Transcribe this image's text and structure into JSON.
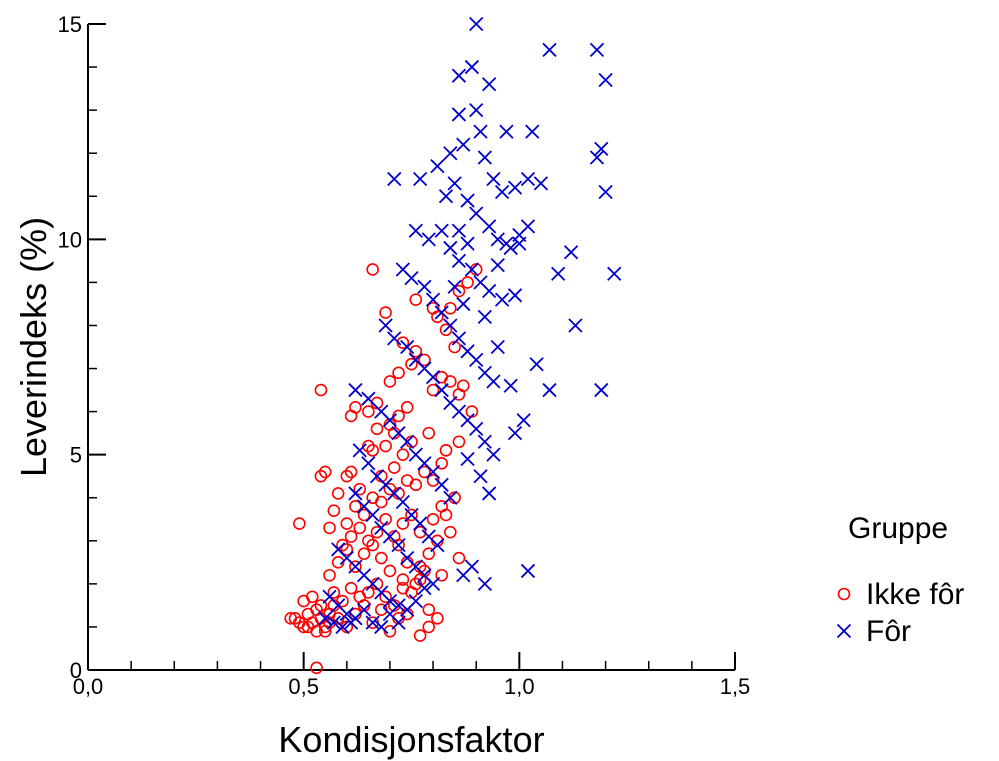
{
  "chart_data": {
    "type": "scatter",
    "title": "",
    "xlabel": "Kondisjonsfaktor",
    "ylabel": "Leverindeks (%)",
    "xlim": [
      0,
      1.5
    ],
    "ylim": [
      0,
      15
    ],
    "xticks": [
      "0,0",
      "0,5",
      "1,0",
      "1,5"
    ],
    "yticks": [
      "0",
      "5",
      "10",
      "15"
    ],
    "grid": false,
    "legend": {
      "title": "Gruppe",
      "placement": "right"
    },
    "series": [
      {
        "name": "Ikke fôr",
        "marker": "circle",
        "color": "#ff0000",
        "points": [
          [
            0.53,
            0.05
          ],
          [
            0.48,
            1.2
          ],
          [
            0.5,
            1.0
          ],
          [
            0.51,
            1.3
          ],
          [
            0.52,
            1.1
          ],
          [
            0.53,
            1.4
          ],
          [
            0.54,
            1.2
          ],
          [
            0.55,
            1.0
          ],
          [
            0.56,
            1.3
          ],
          [
            0.57,
            1.5
          ],
          [
            0.55,
            0.9
          ],
          [
            0.56,
            1.1
          ],
          [
            0.58,
            1.2
          ],
          [
            0.6,
            1.0
          ],
          [
            0.62,
            1.3
          ],
          [
            0.64,
            1.5
          ],
          [
            0.66,
            1.1
          ],
          [
            0.68,
            1.4
          ],
          [
            0.7,
            0.9
          ],
          [
            0.72,
            1.2
          ],
          [
            0.5,
            1.6
          ],
          [
            0.52,
            1.7
          ],
          [
            0.54,
            1.5
          ],
          [
            0.57,
            1.8
          ],
          [
            0.59,
            1.6
          ],
          [
            0.61,
            1.9
          ],
          [
            0.63,
            1.7
          ],
          [
            0.65,
            1.8
          ],
          [
            0.67,
            2.0
          ],
          [
            0.69,
            1.7
          ],
          [
            0.71,
            1.5
          ],
          [
            0.73,
            1.9
          ],
          [
            0.75,
            1.8
          ],
          [
            0.77,
            2.1
          ],
          [
            0.79,
            1.4
          ],
          [
            0.81,
            1.2
          ],
          [
            0.47,
            1.2
          ],
          [
            0.49,
            1.1
          ],
          [
            0.51,
            1.0
          ],
          [
            0.53,
            0.9
          ],
          [
            0.56,
            2.2
          ],
          [
            0.58,
            2.5
          ],
          [
            0.6,
            2.8
          ],
          [
            0.62,
            2.4
          ],
          [
            0.64,
            2.7
          ],
          [
            0.66,
            2.9
          ],
          [
            0.68,
            2.6
          ],
          [
            0.7,
            2.3
          ],
          [
            0.72,
            2.9
          ],
          [
            0.74,
            2.5
          ],
          [
            0.59,
            2.9
          ],
          [
            0.61,
            3.1
          ],
          [
            0.63,
            3.3
          ],
          [
            0.65,
            3.0
          ],
          [
            0.67,
            3.2
          ],
          [
            0.69,
            3.5
          ],
          [
            0.71,
            3.1
          ],
          [
            0.73,
            3.4
          ],
          [
            0.75,
            3.6
          ],
          [
            0.77,
            3.2
          ],
          [
            0.6,
            3.4
          ],
          [
            0.62,
            3.8
          ],
          [
            0.64,
            3.6
          ],
          [
            0.66,
            4.0
          ],
          [
            0.68,
            3.9
          ],
          [
            0.7,
            4.2
          ],
          [
            0.72,
            4.1
          ],
          [
            0.74,
            4.4
          ],
          [
            0.76,
            4.3
          ],
          [
            0.78,
            4.6
          ],
          [
            0.8,
            3.5
          ],
          [
            0.82,
            3.8
          ],
          [
            0.84,
            3.2
          ],
          [
            0.86,
            2.6
          ],
          [
            0.82,
            2.2
          ],
          [
            0.78,
            2.3
          ],
          [
            0.76,
            2.0
          ],
          [
            0.74,
            1.3
          ],
          [
            0.79,
            1.0
          ],
          [
            0.77,
            0.8
          ],
          [
            0.54,
            4.5
          ],
          [
            0.55,
            4.6
          ],
          [
            0.6,
            4.5
          ],
          [
            0.61,
            4.6
          ],
          [
            0.65,
            5.2
          ],
          [
            0.66,
            5.1
          ],
          [
            0.7,
            5.7
          ],
          [
            0.71,
            5.5
          ],
          [
            0.72,
            5.9
          ],
          [
            0.74,
            6.1
          ],
          [
            0.54,
            6.5
          ],
          [
            0.61,
            5.9
          ],
          [
            0.62,
            6.1
          ],
          [
            0.65,
            6.0
          ],
          [
            0.67,
            6.2
          ],
          [
            0.7,
            6.7
          ],
          [
            0.72,
            6.9
          ],
          [
            0.75,
            7.1
          ],
          [
            0.76,
            7.4
          ],
          [
            0.78,
            7.2
          ],
          [
            0.8,
            6.5
          ],
          [
            0.82,
            6.8
          ],
          [
            0.84,
            6.7
          ],
          [
            0.86,
            6.4
          ],
          [
            0.85,
            7.5
          ],
          [
            0.83,
            7.9
          ],
          [
            0.81,
            8.2
          ],
          [
            0.84,
            8.4
          ],
          [
            0.86,
            8.8
          ],
          [
            0.88,
            9.0
          ],
          [
            0.66,
            9.3
          ],
          [
            0.9,
            9.3
          ],
          [
            0.76,
            8.6
          ],
          [
            0.8,
            8.4
          ],
          [
            0.73,
            7.6
          ],
          [
            0.69,
            8.3
          ],
          [
            0.75,
            5.3
          ],
          [
            0.79,
            5.5
          ],
          [
            0.83,
            5.1
          ],
          [
            0.86,
            5.3
          ],
          [
            0.89,
            6.0
          ],
          [
            0.87,
            6.6
          ],
          [
            0.82,
            4.8
          ],
          [
            0.8,
            4.4
          ],
          [
            0.85,
            4.0
          ],
          [
            0.83,
            3.6
          ],
          [
            0.81,
            3.0
          ],
          [
            0.79,
            2.7
          ],
          [
            0.77,
            2.4
          ],
          [
            0.73,
            2.1
          ],
          [
            0.49,
            3.4
          ],
          [
            0.56,
            3.3
          ],
          [
            0.57,
            3.7
          ],
          [
            0.58,
            4.1
          ],
          [
            0.63,
            4.2
          ],
          [
            0.68,
            4.5
          ],
          [
            0.71,
            4.7
          ],
          [
            0.73,
            5.0
          ],
          [
            0.69,
            5.2
          ],
          [
            0.67,
            5.6
          ]
        ]
      },
      {
        "name": "Fôr",
        "marker": "x",
        "color": "#0000cc",
        "points": [
          [
            0.9,
            15.0
          ],
          [
            1.07,
            14.4
          ],
          [
            1.18,
            14.4
          ],
          [
            1.2,
            13.7
          ],
          [
            0.89,
            14.0
          ],
          [
            0.86,
            13.8
          ],
          [
            0.93,
            13.6
          ],
          [
            0.9,
            13.0
          ],
          [
            0.91,
            12.5
          ],
          [
            0.86,
            12.9
          ],
          [
            0.97,
            12.5
          ],
          [
            1.03,
            12.5
          ],
          [
            1.19,
            12.1
          ],
          [
            1.18,
            11.9
          ],
          [
            0.84,
            12.0
          ],
          [
            0.87,
            12.2
          ],
          [
            0.92,
            11.9
          ],
          [
            0.94,
            11.4
          ],
          [
            0.96,
            11.1
          ],
          [
            0.99,
            11.2
          ],
          [
            1.02,
            11.4
          ],
          [
            1.05,
            11.3
          ],
          [
            1.2,
            11.1
          ],
          [
            0.71,
            11.4
          ],
          [
            0.77,
            11.4
          ],
          [
            0.81,
            11.7
          ],
          [
            0.83,
            11.0
          ],
          [
            0.85,
            11.3
          ],
          [
            0.88,
            10.9
          ],
          [
            0.9,
            10.6
          ],
          [
            0.93,
            10.3
          ],
          [
            0.95,
            10.0
          ],
          [
            0.98,
            9.8
          ],
          [
            1.0,
            10.1
          ],
          [
            1.02,
            10.3
          ],
          [
            0.76,
            10.2
          ],
          [
            0.79,
            10.0
          ],
          [
            0.82,
            10.2
          ],
          [
            0.84,
            9.8
          ],
          [
            0.86,
            9.5
          ],
          [
            0.89,
            9.3
          ],
          [
            0.91,
            9.0
          ],
          [
            0.93,
            8.8
          ],
          [
            0.96,
            8.6
          ],
          [
            0.99,
            8.7
          ],
          [
            1.09,
            9.2
          ],
          [
            1.12,
            9.7
          ],
          [
            1.22,
            9.2
          ],
          [
            0.73,
            9.3
          ],
          [
            0.75,
            9.1
          ],
          [
            0.78,
            8.9
          ],
          [
            0.8,
            8.6
          ],
          [
            0.82,
            8.3
          ],
          [
            0.84,
            8.0
          ],
          [
            0.86,
            7.7
          ],
          [
            0.88,
            7.4
          ],
          [
            0.9,
            7.2
          ],
          [
            0.92,
            6.9
          ],
          [
            0.94,
            6.7
          ],
          [
            1.13,
            8.0
          ],
          [
            1.04,
            7.1
          ],
          [
            0.69,
            8.0
          ],
          [
            0.71,
            7.7
          ],
          [
            0.74,
            7.5
          ],
          [
            0.76,
            7.2
          ],
          [
            0.78,
            7.0
          ],
          [
            0.8,
            6.8
          ],
          [
            0.82,
            6.5
          ],
          [
            0.84,
            6.2
          ],
          [
            0.86,
            6.0
          ],
          [
            0.88,
            5.8
          ],
          [
            0.9,
            5.6
          ],
          [
            0.92,
            5.3
          ],
          [
            0.94,
            5.0
          ],
          [
            0.99,
            5.5
          ],
          [
            1.01,
            5.8
          ],
          [
            1.07,
            6.5
          ],
          [
            1.19,
            6.5
          ],
          [
            0.62,
            6.5
          ],
          [
            0.65,
            6.3
          ],
          [
            0.68,
            6.0
          ],
          [
            0.7,
            5.8
          ],
          [
            0.72,
            5.5
          ],
          [
            0.74,
            5.3
          ],
          [
            0.76,
            5.0
          ],
          [
            0.78,
            4.8
          ],
          [
            0.8,
            4.6
          ],
          [
            0.82,
            4.3
          ],
          [
            0.84,
            4.0
          ],
          [
            0.88,
            4.9
          ],
          [
            0.91,
            4.5
          ],
          [
            0.93,
            4.1
          ],
          [
            0.63,
            5.1
          ],
          [
            0.65,
            4.8
          ],
          [
            0.67,
            4.5
          ],
          [
            0.69,
            4.3
          ],
          [
            0.71,
            4.1
          ],
          [
            0.73,
            3.9
          ],
          [
            0.75,
            3.6
          ],
          [
            0.77,
            3.4
          ],
          [
            0.79,
            3.1
          ],
          [
            0.81,
            2.9
          ],
          [
            0.62,
            4.1
          ],
          [
            0.64,
            3.8
          ],
          [
            0.66,
            3.6
          ],
          [
            0.68,
            3.3
          ],
          [
            0.7,
            3.1
          ],
          [
            0.72,
            2.9
          ],
          [
            0.74,
            2.6
          ],
          [
            0.76,
            2.4
          ],
          [
            0.78,
            2.2
          ],
          [
            0.8,
            2.0
          ],
          [
            0.87,
            2.2
          ],
          [
            0.89,
            2.4
          ],
          [
            0.92,
            2.0
          ],
          [
            1.02,
            2.3
          ],
          [
            0.58,
            2.8
          ],
          [
            0.6,
            2.6
          ],
          [
            0.62,
            2.4
          ],
          [
            0.64,
            2.2
          ],
          [
            0.66,
            2.0
          ],
          [
            0.68,
            1.8
          ],
          [
            0.7,
            1.6
          ],
          [
            0.72,
            1.5
          ],
          [
            0.74,
            1.4
          ],
          [
            0.76,
            1.6
          ],
          [
            0.78,
            1.9
          ],
          [
            0.56,
            1.7
          ],
          [
            0.58,
            1.5
          ],
          [
            0.6,
            1.3
          ],
          [
            0.62,
            1.2
          ],
          [
            0.64,
            1.4
          ],
          [
            0.66,
            1.1
          ],
          [
            0.68,
            1.0
          ],
          [
            0.7,
            1.3
          ],
          [
            0.72,
            1.1
          ],
          [
            0.55,
            1.2
          ],
          [
            0.57,
            1.1
          ],
          [
            0.59,
            1.0
          ],
          [
            0.61,
            1.1
          ],
          [
            0.86,
            10.2
          ],
          [
            0.88,
            9.9
          ],
          [
            0.95,
            9.4
          ],
          [
            0.97,
            9.9
          ],
          [
            1.0,
            9.9
          ],
          [
            0.85,
            8.9
          ],
          [
            0.87,
            8.5
          ],
          [
            0.92,
            8.2
          ],
          [
            0.95,
            7.5
          ],
          [
            0.98,
            6.6
          ]
        ]
      }
    ]
  }
}
